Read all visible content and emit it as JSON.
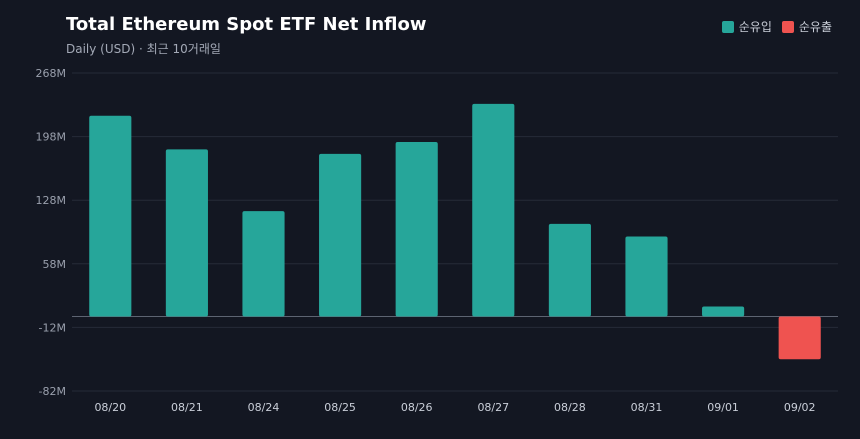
{
  "chart_data": {
    "type": "bar",
    "title": "Total Ethereum Spot ETF Net Inflow",
    "subtitle": "Daily (USD) · 최근 10거래일",
    "categories": [
      "08/20",
      "08/21",
      "08/24",
      "08/25",
      "08/26",
      "08/27",
      "08/28",
      "08/31",
      "09/01",
      "09/02"
    ],
    "values": [
      221,
      184,
      116,
      179,
      192,
      234,
      102,
      88,
      11,
      -47
    ],
    "yticks": [
      "268M",
      "198M",
      "128M",
      "58M",
      "-12M",
      "-82M"
    ],
    "ylim": [
      -82,
      268
    ],
    "legend": [
      {
        "label": "순유입",
        "color": "#26a69a"
      },
      {
        "label": "순유출",
        "color": "#ef5350"
      }
    ],
    "legend_position": "top-right",
    "grid": true,
    "colors": {
      "positive": "#26a69a",
      "negative": "#ef5350"
    }
  }
}
